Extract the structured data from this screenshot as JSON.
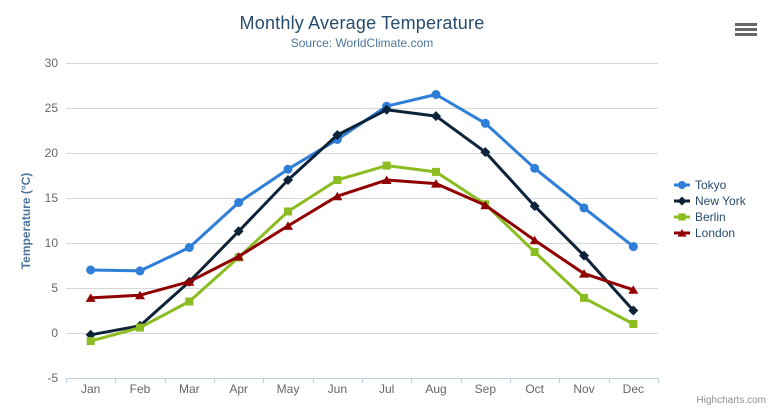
{
  "header": {
    "title": "Monthly Average Temperature",
    "subtitle": "Source: WorldClimate.com"
  },
  "toolbar": {
    "export_menu_icon": "hamburger-icon"
  },
  "credits": {
    "label": "Highcharts.com"
  },
  "chart_data": {
    "type": "line",
    "title": "Monthly Average Temperature",
    "subtitle": "Source: WorldClimate.com",
    "xlabel": "",
    "ylabel": "Temperature (°C)",
    "categories": [
      "Jan",
      "Feb",
      "Mar",
      "Apr",
      "May",
      "Jun",
      "Jul",
      "Aug",
      "Sep",
      "Oct",
      "Nov",
      "Dec"
    ],
    "ylim": [
      -5,
      30
    ],
    "yticks": [
      -5,
      0,
      5,
      10,
      15,
      20,
      25,
      30
    ],
    "grid": true,
    "legend_position": "right",
    "series": [
      {
        "name": "Tokyo",
        "color": "#2f7ed8",
        "marker": "circle",
        "values": [
          7.0,
          6.9,
          9.5,
          14.5,
          18.2,
          21.5,
          25.2,
          26.5,
          23.3,
          18.3,
          13.9,
          9.6
        ]
      },
      {
        "name": "New York",
        "color": "#0d233a",
        "marker": "diamond",
        "values": [
          -0.2,
          0.8,
          5.7,
          11.3,
          17.0,
          22.0,
          24.8,
          24.1,
          20.1,
          14.1,
          8.6,
          2.5
        ]
      },
      {
        "name": "Berlin",
        "color": "#8bbc21",
        "marker": "square",
        "values": [
          -0.9,
          0.6,
          3.5,
          8.4,
          13.5,
          17.0,
          18.6,
          17.9,
          14.3,
          9.0,
          3.9,
          1.0
        ]
      },
      {
        "name": "London",
        "color": "#910000",
        "marker": "triangle",
        "values": [
          3.9,
          4.2,
          5.7,
          8.5,
          11.9,
          15.2,
          17.0,
          16.6,
          14.2,
          10.3,
          6.6,
          4.8
        ]
      }
    ]
  },
  "theme": {
    "title_color": "#274b6d",
    "subtitle_color": "#4d759e",
    "axis_title_color": "#4d759e",
    "tick_label_color": "#666666",
    "grid_color": "#d8d8d8",
    "axis_line_color": "#c0d0e0",
    "legend_text_color": "#274b6d",
    "credits_color": "#909090",
    "menu_icon_color": "#666666",
    "background": "#ffffff"
  }
}
